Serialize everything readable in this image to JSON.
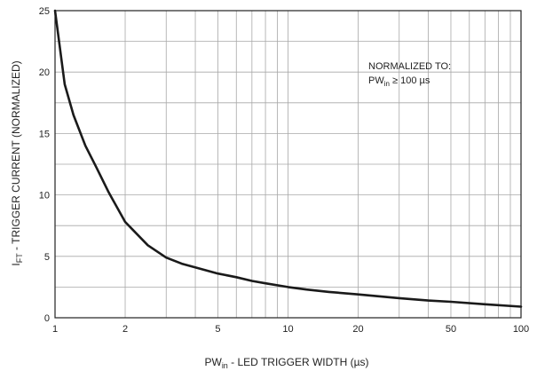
{
  "chart_data": {
    "type": "line",
    "x_scale": "log",
    "y_scale": "linear",
    "xlim": [
      1,
      100
    ],
    "ylim": [
      0,
      25
    ],
    "grid": true,
    "x_ticks": [
      1,
      2,
      5,
      10,
      20,
      50,
      100
    ],
    "y_ticks": [
      0,
      5,
      10,
      15,
      20,
      25
    ],
    "xlabel": {
      "main": "PW",
      "sub": "in",
      "rest": " - LED TRIGGER WIDTH (µs)"
    },
    "ylabel": {
      "main": "I",
      "sub": "FT",
      "rest": " - TRIGGER CURRENT (NORMALIZED)"
    },
    "annotation": {
      "line1": "NORMALIZED TO:",
      "line2_main": "PW",
      "line2_sub": "in",
      "line2_rest": " ≥ 100 µs"
    },
    "series": [
      {
        "x": [
          1.0,
          1.1,
          1.2,
          1.35,
          1.5,
          1.7,
          2.0,
          2.5,
          3.0,
          3.5,
          4.0,
          5.0,
          6.0,
          7.0,
          8.0,
          10.0,
          12.0,
          15.0,
          20.0,
          30.0,
          40.0,
          50.0,
          70.0,
          100.0
        ],
        "y": [
          25.0,
          19.0,
          16.5,
          14.0,
          12.3,
          10.2,
          7.8,
          5.9,
          4.9,
          4.4,
          4.1,
          3.6,
          3.3,
          3.0,
          2.8,
          2.5,
          2.3,
          2.1,
          1.9,
          1.6,
          1.4,
          1.3,
          1.1,
          0.9
        ]
      }
    ],
    "colors": {
      "curve": "#1a1a1a",
      "grid": "#a8a8a8",
      "frame": "#222222"
    }
  }
}
